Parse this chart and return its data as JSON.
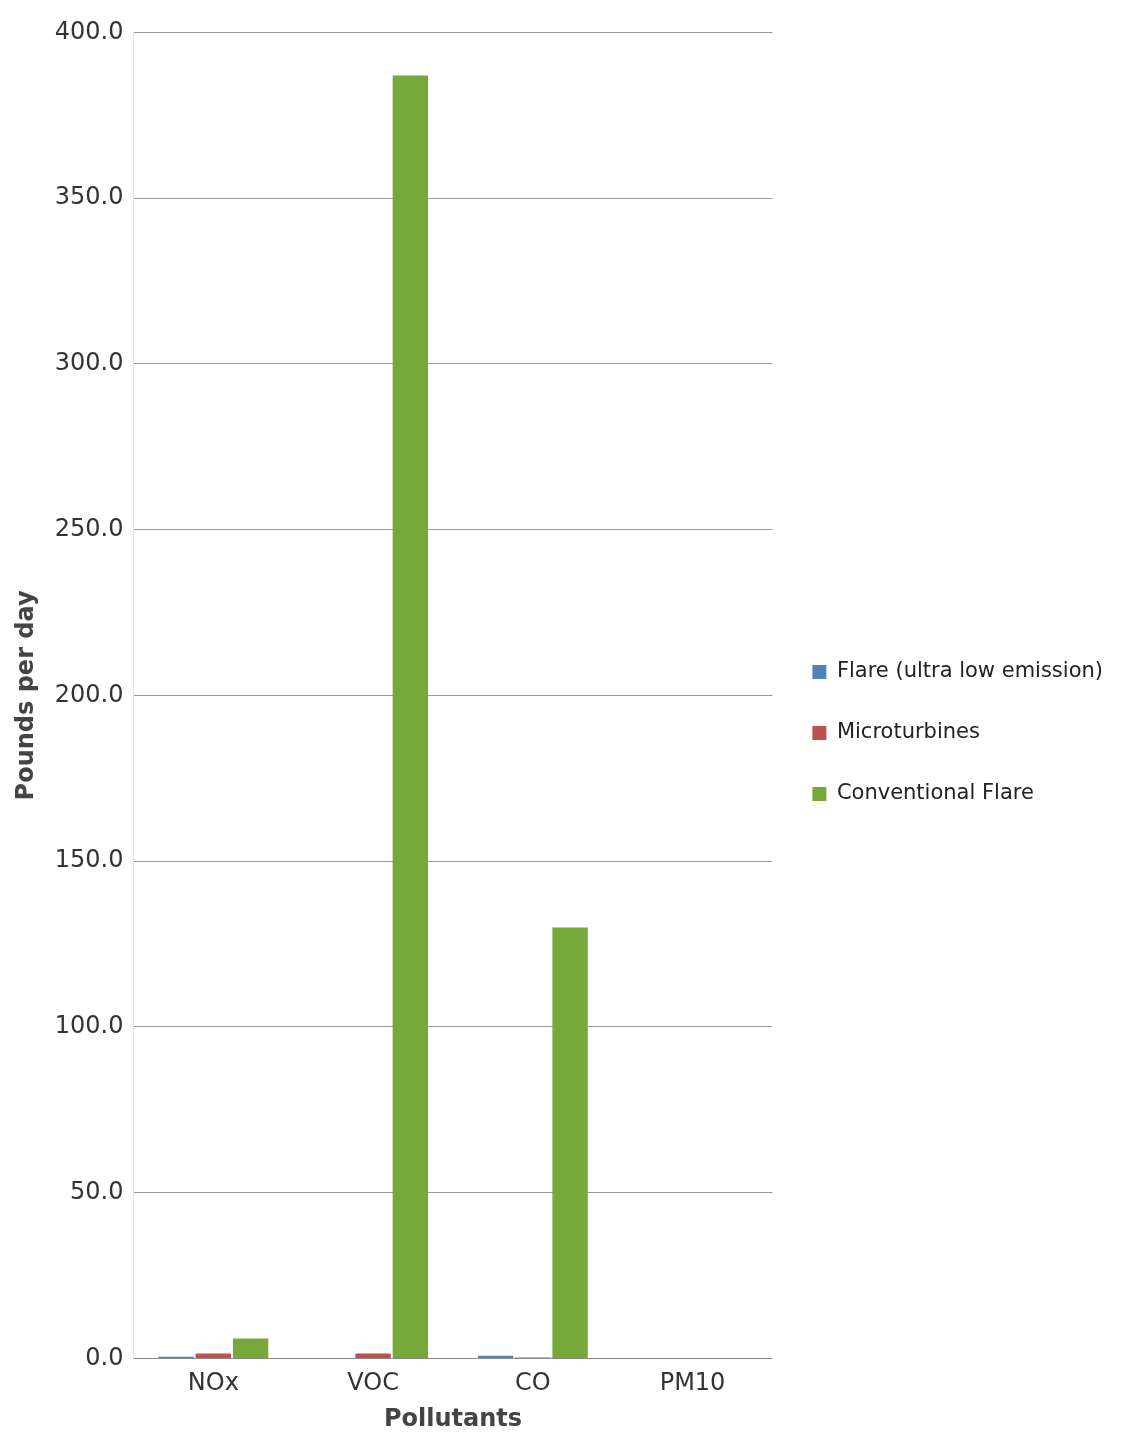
{
  "chart_data": {
    "type": "bar",
    "xlabel": "Pollutants",
    "ylabel": "Pounds per day",
    "categories": [
      "NOx",
      "VOC",
      "CO",
      "PM10"
    ],
    "series": [
      {
        "name": "Flare (ultra low emission)",
        "color": "#4f81bd",
        "values": [
          0.5,
          0,
          0.8,
          0
        ]
      },
      {
        "name": "Microturbines",
        "color": "#c0504d",
        "values": [
          1.5,
          1.5,
          0.3,
          0
        ]
      },
      {
        "name": "Conventional Flare",
        "color": "#77a83a",
        "values": [
          6,
          387,
          130,
          0
        ]
      }
    ],
    "ylim": [
      0,
      400
    ],
    "yticks": [
      {
        "value": 0,
        "label": "0.0"
      },
      {
        "value": 50,
        "label": "50.0"
      },
      {
        "value": 100,
        "label": "100.0"
      },
      {
        "value": 150,
        "label": "150.0"
      },
      {
        "value": 200,
        "label": "200.0"
      },
      {
        "value": 250,
        "label": "250.0"
      },
      {
        "value": 300,
        "label": "300.0"
      },
      {
        "value": 350,
        "label": "350.0"
      },
      {
        "value": 400,
        "label": "400.0"
      }
    ],
    "grid": "y",
    "legend": "right"
  }
}
